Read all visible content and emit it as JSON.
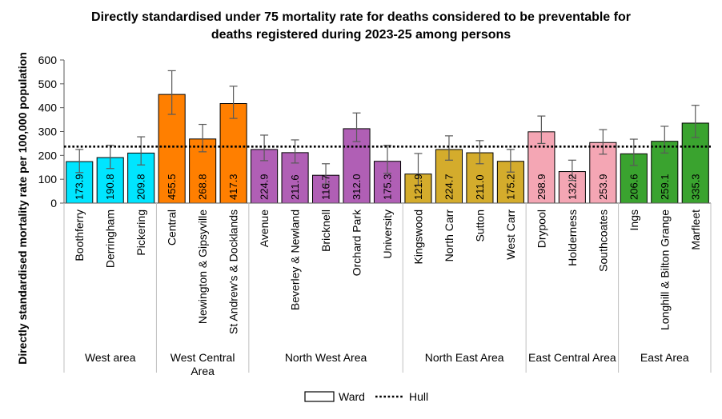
{
  "chart_data": {
    "type": "bar",
    "title_lines": [
      "Directly standardised under 75 mortality rate for deaths considered to be preventable for",
      "deaths registered during 2023-25 among persons"
    ],
    "ylabel": "Directly standardised mortality rate per 100,000 population",
    "ylim": [
      0,
      600
    ],
    "yticks": [
      0,
      100,
      200,
      300,
      400,
      500,
      600
    ],
    "grid": false,
    "legend_position": "bottom",
    "legend": [
      {
        "label": "Ward",
        "kind": "box"
      },
      {
        "label": "Hull",
        "kind": "dotted-line"
      }
    ],
    "reference_line": {
      "name": "Hull",
      "value": 237
    },
    "groups": [
      {
        "label": [
          "West area"
        ],
        "color": "#00e5ff",
        "count": 3
      },
      {
        "label": [
          "West Central",
          "Area"
        ],
        "color": "#ff7f00",
        "count": 3
      },
      {
        "label": [
          "North West Area"
        ],
        "color": "#b05fb5",
        "count": 5
      },
      {
        "label": [
          "North East Area"
        ],
        "color": "#d4ac2c",
        "count": 4
      },
      {
        "label": [
          "East Central Area"
        ],
        "color": "#f4a6b4",
        "count": 3
      },
      {
        "label": [
          "East Area"
        ],
        "color": "#3aa32f",
        "count": 3
      }
    ],
    "categories": [
      "Boothferry",
      "Derringham",
      "Pickering",
      "Central",
      "Newington & Gipsyville",
      "St Andrew's & Docklands",
      "Avenue",
      "Beverley & Newland",
      "Bricknell",
      "Orchard Park",
      "University",
      "Kingswood",
      "North Carr",
      "Sutton",
      "West Carr",
      "Drypool",
      "Holderness",
      "Southcoates",
      "Ings",
      "Longhill & Bilton Grange",
      "Marfleet"
    ],
    "values": [
      173.9,
      190.8,
      209.8,
      455.5,
      268.8,
      417.3,
      224.9,
      211.6,
      116.7,
      312.0,
      175.3,
      121.9,
      224.7,
      211.0,
      175.2,
      298.9,
      132.2,
      253.9,
      206.6,
      259.1,
      335.3
    ],
    "value_labels": [
      "173.9",
      "190.8",
      "209.8",
      "455.5",
      "268.8",
      "417.3",
      "224.9",
      "211.6",
      "116.7",
      "312.0",
      "175.3",
      "121.9",
      "224.7",
      "211.0",
      "175.2",
      "298.9",
      "132.2",
      "253.9",
      "206.6",
      "259.1",
      "335.3"
    ],
    "ci_lower": [
      128,
      145,
      160,
      372,
      215,
      355,
      178,
      168,
      80,
      258,
      125,
      75,
      180,
      165,
      130,
      250,
      95,
      205,
      158,
      210,
      275
    ],
    "ci_upper": [
      225,
      242,
      278,
      555,
      330,
      490,
      285,
      265,
      165,
      378,
      242,
      208,
      282,
      262,
      225,
      365,
      180,
      308,
      268,
      322,
      410
    ]
  }
}
